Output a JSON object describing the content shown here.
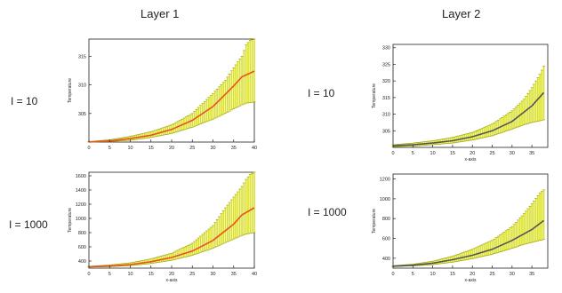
{
  "columns": [
    "Layer 1",
    "Layer 2"
  ],
  "row_labels": [
    "I = 10",
    "I = 10",
    "I = 1000",
    "I = 1000"
  ],
  "chart_data": [
    {
      "type": "line",
      "title": "",
      "xlabel": "",
      "ylabel": "Temperature",
      "xlim": [
        0,
        40
      ],
      "ylim": [
        300,
        318
      ],
      "xticks": [
        "0",
        "5",
        "10",
        "15",
        "20",
        "25",
        "30",
        "35",
        "40"
      ],
      "yticks": [
        "305",
        "310",
        "315"
      ],
      "series": [
        {
          "name": "",
          "color": "#e8541b",
          "x": [
            0,
            5,
            10,
            15,
            20,
            25,
            30,
            35,
            37,
            40
          ],
          "y": [
            300.0,
            300.2,
            300.6,
            301.2,
            302.2,
            303.8,
            306.2,
            309.8,
            311.4,
            312.4
          ]
        }
      ],
      "errorbars": {
        "color": "#d9e021",
        "x": [
          0,
          5,
          10,
          15,
          20,
          25,
          30,
          33,
          35,
          37,
          38,
          39,
          40
        ],
        "low": [
          300,
          300.1,
          300.3,
          300.8,
          301.5,
          302.6,
          304.0,
          305.0,
          305.8,
          306.5,
          306.8,
          306.9,
          307.0
        ],
        "high": [
          300.1,
          300.4,
          301.0,
          301.8,
          303.0,
          305.0,
          308.5,
          310.8,
          313.0,
          315.0,
          317.0,
          317.8,
          318.0
        ]
      }
    },
    {
      "type": "line",
      "title": "",
      "xlabel": "x-axis",
      "ylabel": "Temperature",
      "xlim": [
        0,
        39
      ],
      "ylim": [
        300,
        331
      ],
      "xticks": [
        "0",
        "5",
        "10",
        "15",
        "20",
        "25",
        "30",
        "35"
      ],
      "yticks": [
        "305",
        "310",
        "315",
        "320",
        "325",
        "330"
      ],
      "series": [
        {
          "name": "",
          "color": "#555555",
          "x": [
            0,
            5,
            10,
            15,
            20,
            25,
            30,
            35,
            38
          ],
          "y": [
            300.5,
            300.8,
            301.3,
            302.0,
            303.2,
            305.0,
            307.8,
            312.5,
            316.5
          ]
        }
      ],
      "errorbars": {
        "color": "#d9e021",
        "x": [
          0,
          5,
          10,
          15,
          20,
          25,
          30,
          33,
          35,
          37,
          38
        ],
        "low": [
          300.2,
          300.4,
          300.8,
          301.3,
          302.2,
          303.5,
          305.5,
          306.8,
          307.5,
          308.0,
          308.3
        ],
        "high": [
          300.8,
          301.3,
          302.0,
          303.0,
          304.5,
          307.0,
          311.0,
          314.5,
          318.0,
          322.0,
          324.5
        ]
      }
    },
    {
      "type": "line",
      "title": "",
      "xlabel": "x-axis",
      "ylabel": "Temperature",
      "xlim": [
        0,
        40
      ],
      "ylim": [
        300,
        1650
      ],
      "xticks": [
        "0",
        "5",
        "10",
        "15",
        "20",
        "25",
        "30",
        "35",
        "40"
      ],
      "yticks": [
        "400",
        "600",
        "800",
        "1000",
        "1200",
        "1400",
        "1600"
      ],
      "series": [
        {
          "name": "",
          "color": "#e8541b",
          "x": [
            0,
            5,
            10,
            15,
            20,
            25,
            30,
            35,
            37,
            40
          ],
          "y": [
            320,
            330,
            350,
            390,
            450,
            540,
            690,
            920,
            1050,
            1150
          ]
        }
      ],
      "errorbars": {
        "color": "#d9e021",
        "x": [
          0,
          5,
          10,
          15,
          20,
          25,
          30,
          33,
          35,
          37,
          38,
          39,
          40
        ],
        "low": [
          315,
          320,
          335,
          365,
          410,
          480,
          580,
          660,
          710,
          760,
          780,
          790,
          800
        ],
        "high": [
          325,
          345,
          375,
          430,
          510,
          650,
          900,
          1150,
          1300,
          1450,
          1550,
          1620,
          1650
        ]
      }
    },
    {
      "type": "line",
      "title": "",
      "xlabel": "x-axis",
      "ylabel": "Temperature",
      "xlim": [
        0,
        39
      ],
      "ylim": [
        300,
        1250
      ],
      "xticks": [
        "0",
        "5",
        "10",
        "15",
        "20",
        "25",
        "30",
        "35"
      ],
      "yticks": [
        "400",
        "600",
        "800",
        "1000",
        "1200"
      ],
      "series": [
        {
          "name": "",
          "color": "#555555",
          "x": [
            0,
            5,
            10,
            15,
            20,
            25,
            30,
            35,
            38
          ],
          "y": [
            320,
            330,
            350,
            385,
            430,
            490,
            580,
            690,
            780
          ]
        }
      ],
      "errorbars": {
        "color": "#d9e021",
        "x": [
          0,
          5,
          10,
          15,
          20,
          25,
          30,
          33,
          35,
          37,
          38
        ],
        "low": [
          315,
          322,
          335,
          360,
          395,
          440,
          500,
          540,
          560,
          580,
          590
        ],
        "high": [
          325,
          340,
          370,
          420,
          490,
          580,
          720,
          850,
          950,
          1060,
          1090
        ]
      }
    }
  ]
}
